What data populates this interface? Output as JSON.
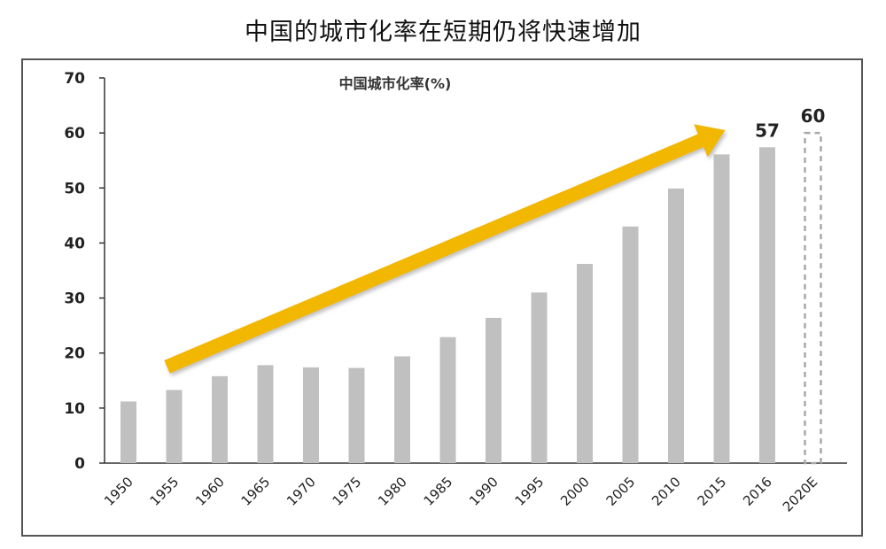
{
  "title": "中国的城市化率在短期仍将快速增加",
  "chart_data": {
    "type": "bar",
    "title": "中国城市化率(%)",
    "categories": [
      "1950",
      "1955",
      "1960",
      "1965",
      "1970",
      "1975",
      "1980",
      "1985",
      "1990",
      "1995",
      "2000",
      "2005",
      "2010",
      "2015",
      "2016",
      "2020E"
    ],
    "values": [
      11.2,
      13.3,
      15.8,
      17.8,
      17.4,
      17.3,
      19.4,
      22.9,
      26.4,
      31.0,
      36.2,
      43.0,
      49.9,
      56.1,
      57.4,
      60
    ],
    "projected": [
      false,
      false,
      false,
      false,
      false,
      false,
      false,
      false,
      false,
      false,
      false,
      false,
      false,
      false,
      false,
      true
    ],
    "data_labels": [
      {
        "category": "2016",
        "text": "57"
      },
      {
        "category": "2020E",
        "text": "60"
      }
    ],
    "xlabel": "",
    "ylabel": "",
    "ylim": [
      0,
      70
    ],
    "yticks": [
      "0",
      "10",
      "20",
      "30",
      "40",
      "50",
      "60",
      "70"
    ],
    "grid": false,
    "trend_arrow": {
      "from_category": "1955",
      "from_value": 17.5,
      "to_category": "2015",
      "to_value": 60.5
    },
    "colors": {
      "bar": "#c0c0c0",
      "projected_bar": "#a8a8a8",
      "arrow": "#f2b705",
      "axis": "#333333",
      "text": "#222222"
    }
  }
}
